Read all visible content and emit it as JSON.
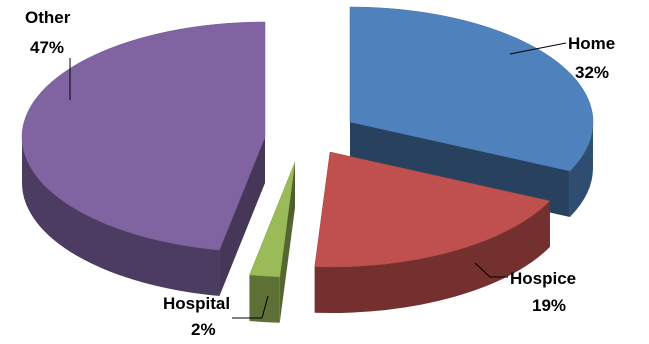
{
  "chart_data": {
    "type": "pie",
    "three_d": true,
    "exploded": true,
    "categories": [
      "Home",
      "Hospice",
      "Hospital",
      "Other"
    ],
    "values": [
      32,
      19,
      2,
      47
    ],
    "value_labels": [
      "32%",
      "19%",
      "2%",
      "47%"
    ],
    "colors": [
      "#4F81BD",
      "#C0504D",
      "#9BBB59",
      "#8064A2"
    ],
    "legend": "none"
  }
}
